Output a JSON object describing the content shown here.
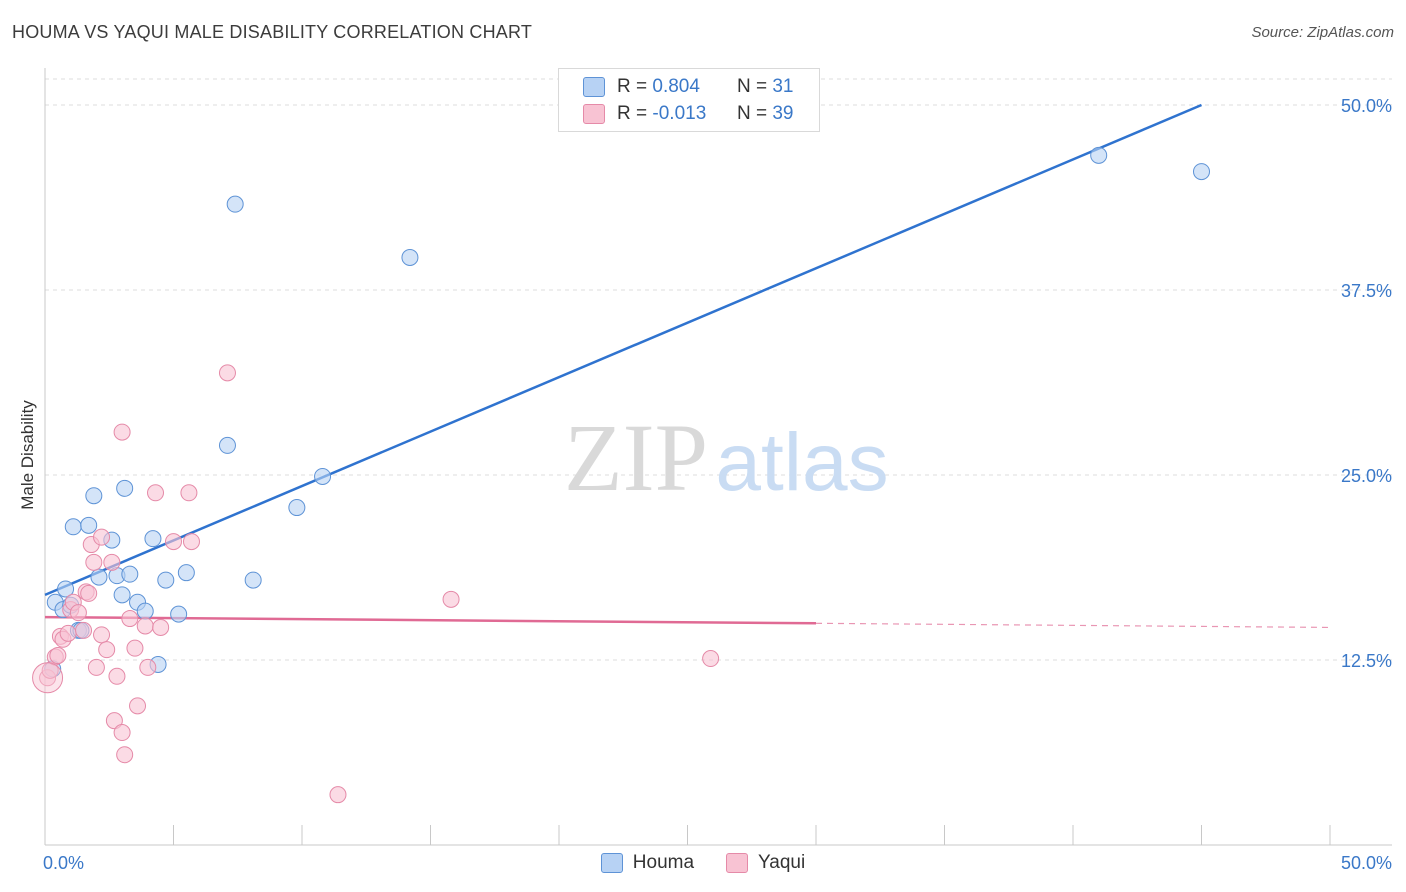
{
  "title": "HOUMA VS YAQUI MALE DISABILITY CORRELATION CHART",
  "source": "Source: ZipAtlas.com",
  "watermark": {
    "zip": "ZIP",
    "atlas": "atlas"
  },
  "colors": {
    "houma_fill": "#b7d2f4",
    "houma_stroke": "#5e93d6",
    "houma_line": "#2f73cf",
    "yaqui_fill": "#f8c3d3",
    "yaqui_stroke": "#e58aa8",
    "yaqui_line": "#e06a94",
    "grid": "#dedede",
    "tick_label": "#3a78c8"
  },
  "legend": {
    "rows": [
      {
        "r_label": "R =",
        "r_value": "0.804",
        "n_label": "N =",
        "n_value": "31"
      },
      {
        "r_label": "R =",
        "r_value": "-0.013",
        "n_label": "N =",
        "n_value": "39"
      }
    ]
  },
  "bottom_legend": [
    "Houma",
    "Yaqui"
  ],
  "chart_data": {
    "type": "scatter",
    "title": "HOUMA VS YAQUI MALE DISABILITY CORRELATION CHART",
    "xlabel": "",
    "ylabel": "Male Disability",
    "xlim": [
      0,
      50
    ],
    "ylim": [
      0,
      52.5
    ],
    "x_tick_labels": [
      "0.0%",
      "50.0%"
    ],
    "y_ticks": [
      12.5,
      25.0,
      37.5,
      50.0
    ],
    "y_tick_labels": [
      "12.5%",
      "25.0%",
      "37.5%",
      "50.0%"
    ],
    "grid": true,
    "legend_position": "top-center",
    "series": [
      {
        "name": "Houma",
        "r": 0.804,
        "n": 31,
        "trend": {
          "x": [
            0.0,
            45.0
          ],
          "y": [
            16.9,
            50.0
          ],
          "solid_until": 45.0
        },
        "points": [
          [
            0.3,
            11.9
          ],
          [
            0.4,
            16.4
          ],
          [
            0.7,
            15.9
          ],
          [
            0.8,
            17.3
          ],
          [
            1.0,
            16.2
          ],
          [
            1.1,
            21.5
          ],
          [
            1.3,
            14.5
          ],
          [
            1.4,
            14.5
          ],
          [
            1.7,
            21.6
          ],
          [
            1.9,
            23.6
          ],
          [
            2.1,
            18.1
          ],
          [
            2.6,
            20.6
          ],
          [
            2.8,
            18.2
          ],
          [
            3.0,
            16.9
          ],
          [
            3.1,
            24.1
          ],
          [
            3.3,
            18.3
          ],
          [
            3.6,
            16.4
          ],
          [
            3.9,
            15.8
          ],
          [
            4.2,
            20.7
          ],
          [
            4.4,
            12.2
          ],
          [
            4.7,
            17.9
          ],
          [
            5.2,
            15.6
          ],
          [
            5.5,
            18.4
          ],
          [
            7.1,
            27.0
          ],
          [
            7.4,
            43.3
          ],
          [
            8.1,
            17.9
          ],
          [
            9.8,
            22.8
          ],
          [
            10.8,
            24.9
          ],
          [
            14.2,
            39.7
          ],
          [
            41.0,
            46.6
          ],
          [
            45.0,
            45.5
          ]
        ]
      },
      {
        "name": "Yaqui",
        "r": -0.013,
        "n": 39,
        "trend": {
          "x": [
            0.0,
            50.0
          ],
          "y": [
            15.4,
            14.7
          ],
          "solid_until": 30.0
        },
        "points": [
          [
            0.1,
            11.3
          ],
          [
            0.2,
            11.8
          ],
          [
            0.4,
            12.7
          ],
          [
            0.5,
            12.8
          ],
          [
            0.6,
            14.1
          ],
          [
            0.7,
            13.9
          ],
          [
            0.9,
            14.3
          ],
          [
            1.0,
            15.9
          ],
          [
            1.1,
            16.4
          ],
          [
            1.3,
            15.7
          ],
          [
            1.5,
            14.5
          ],
          [
            1.6,
            17.1
          ],
          [
            1.7,
            17.0
          ],
          [
            1.8,
            20.3
          ],
          [
            1.9,
            19.1
          ],
          [
            2.0,
            12.0
          ],
          [
            2.2,
            14.2
          ],
          [
            2.2,
            20.8
          ],
          [
            2.4,
            13.2
          ],
          [
            2.6,
            19.1
          ],
          [
            2.7,
            8.4
          ],
          [
            2.8,
            11.4
          ],
          [
            3.0,
            7.6
          ],
          [
            3.1,
            6.1
          ],
          [
            3.0,
            27.9
          ],
          [
            3.3,
            15.3
          ],
          [
            3.5,
            13.3
          ],
          [
            3.6,
            9.4
          ],
          [
            3.9,
            14.8
          ],
          [
            4.0,
            12.0
          ],
          [
            4.3,
            23.8
          ],
          [
            4.5,
            14.7
          ],
          [
            5.0,
            20.5
          ],
          [
            5.6,
            23.8
          ],
          [
            5.7,
            20.5
          ],
          [
            7.1,
            31.9
          ],
          [
            11.4,
            3.4
          ],
          [
            15.8,
            16.6
          ],
          [
            25.9,
            12.6
          ]
        ]
      }
    ]
  }
}
